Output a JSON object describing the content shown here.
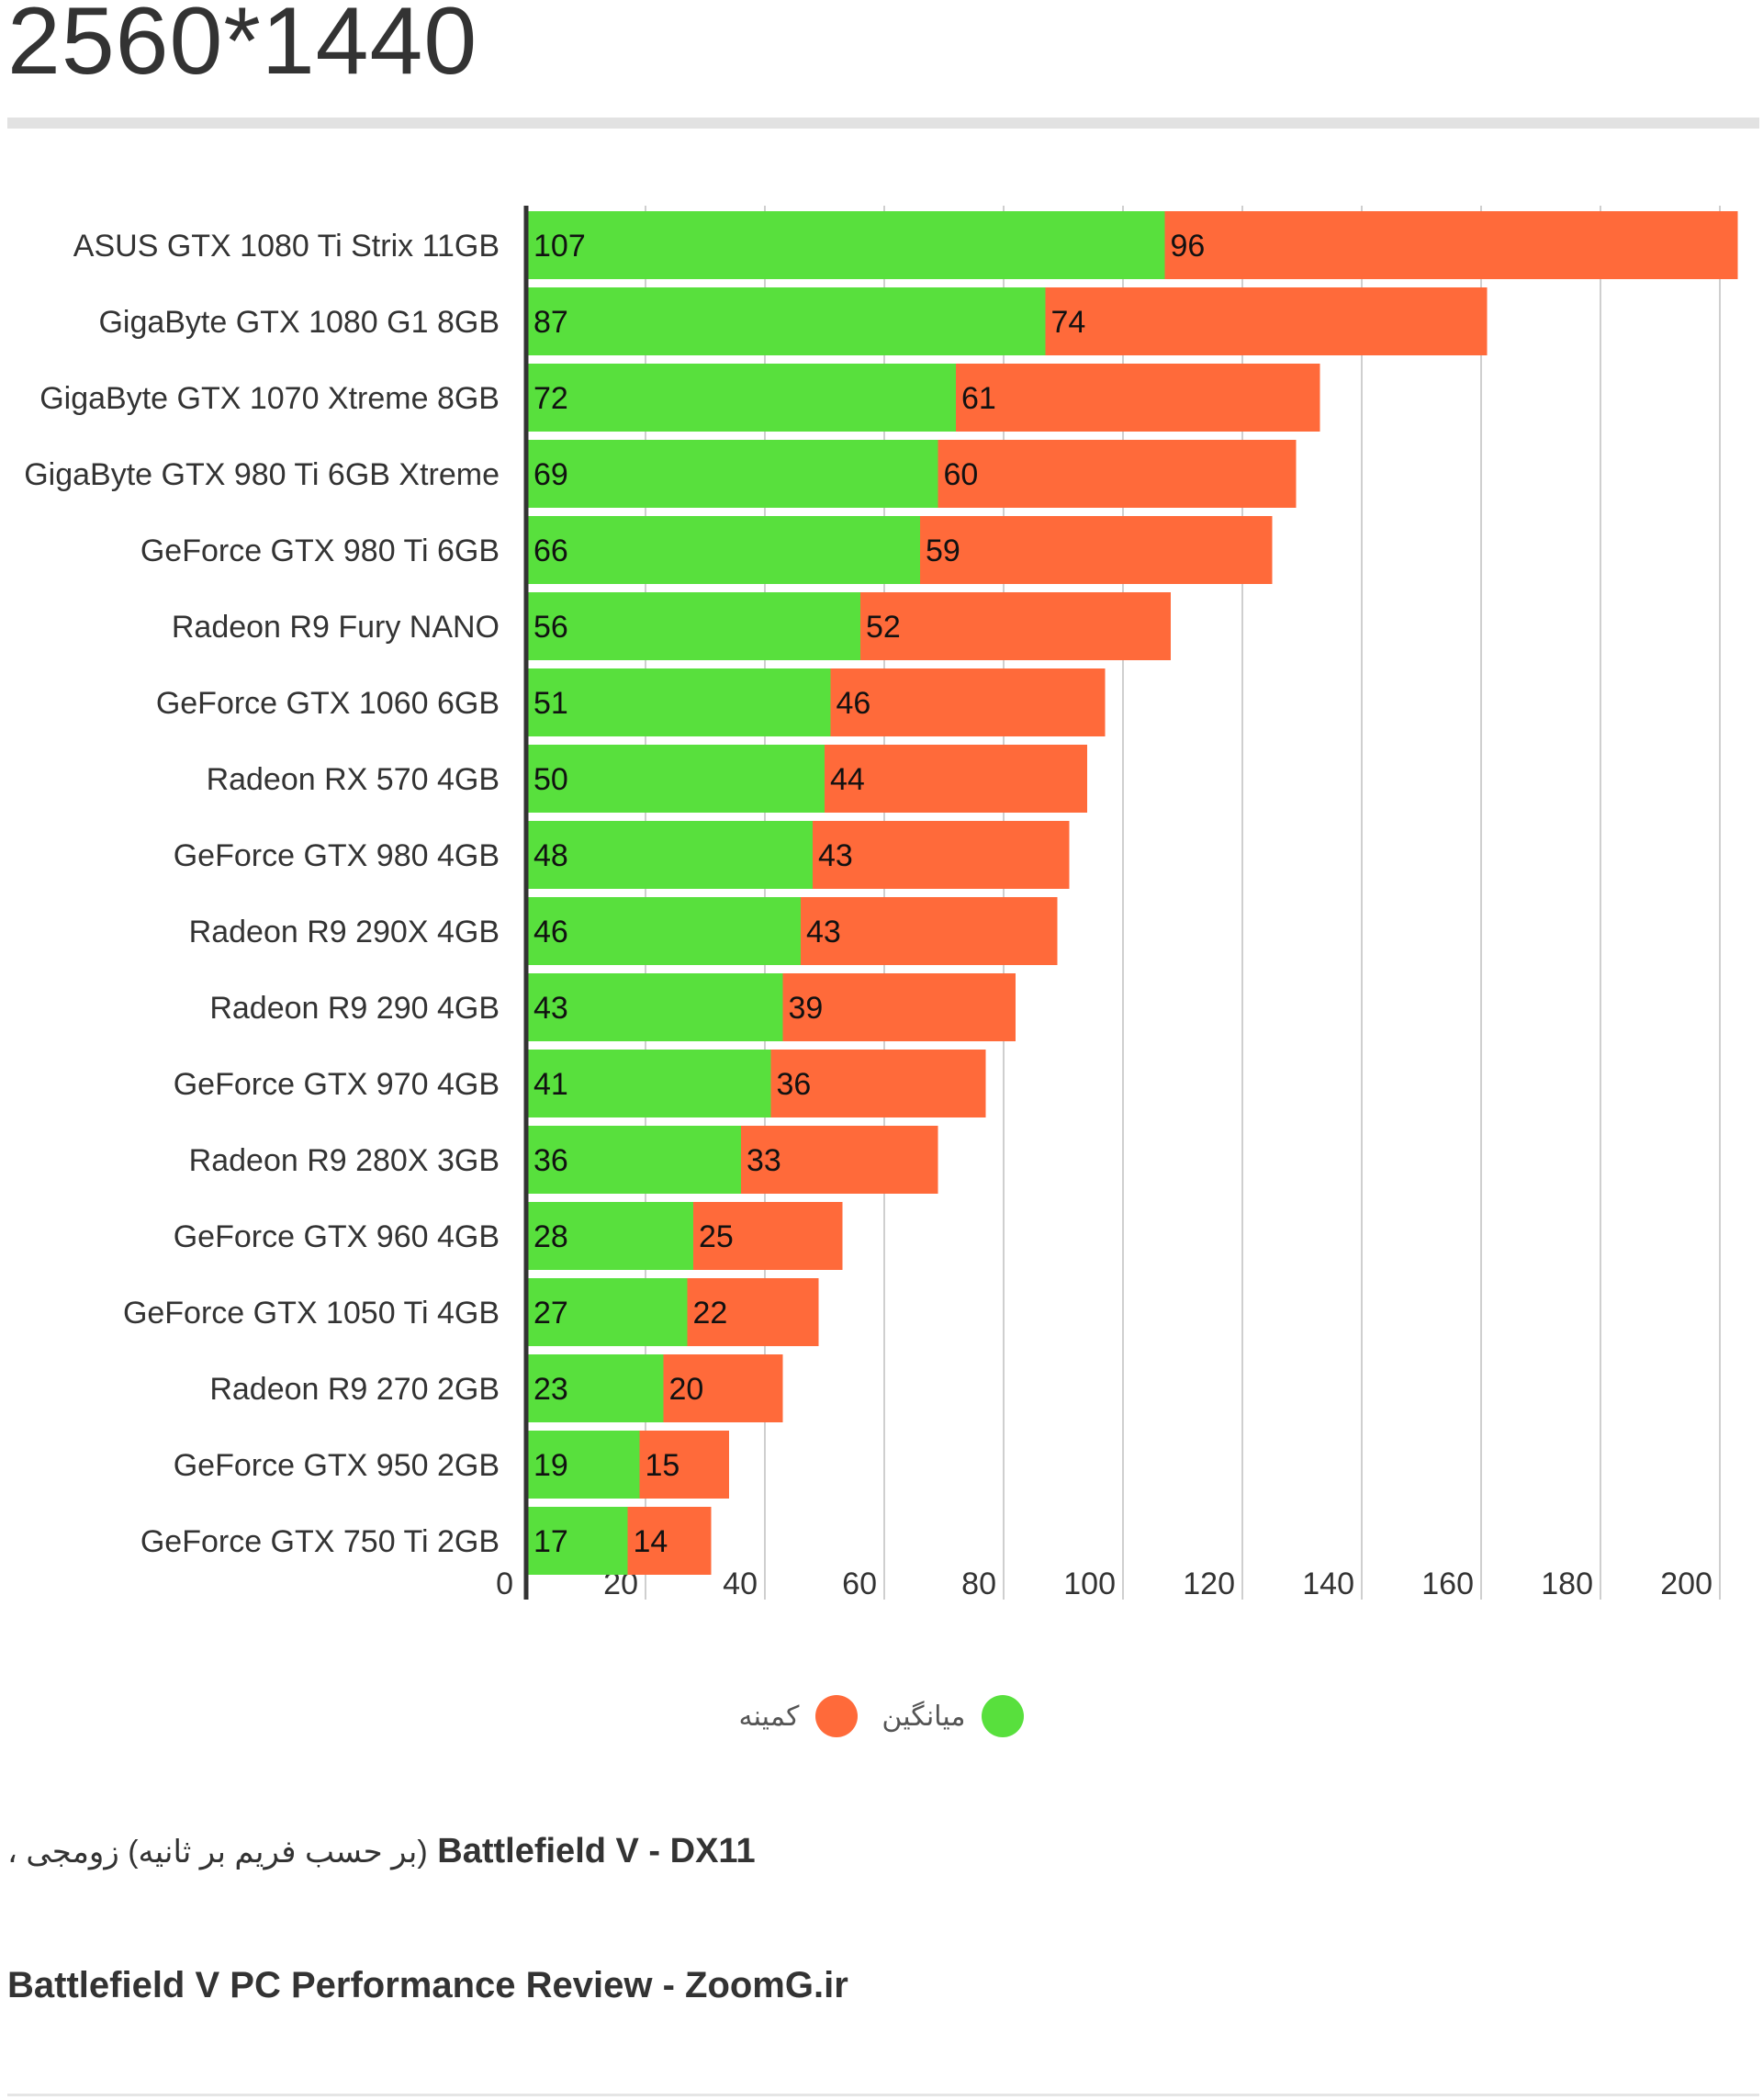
{
  "page": {
    "title": "2560*1440",
    "caption_fa": "(بر حسب فریم بر ثانیه) زومجی ،",
    "caption_en": "Battlefield V - DX11",
    "source": "Battlefield V PC Performance Review - ZoomG.ir"
  },
  "legend": {
    "min_label": "کمینه",
    "avg_label": "میانگین"
  },
  "colors": {
    "average": "#58e03d",
    "minimum": "#ff6a3a",
    "grid": "#cfcfcf",
    "axis": "#333333"
  },
  "chart_data": {
    "type": "bar",
    "orientation": "horizontal",
    "stacked": true,
    "categories": [
      "ASUS GTX 1080 Ti Strix 11GB",
      "GigaByte GTX 1080 G1 8GB",
      "GigaByte GTX 1070 Xtreme 8GB",
      "GigaByte GTX 980 Ti 6GB Xtreme",
      "GeForce GTX 980 Ti 6GB",
      "Radeon R9 Fury NANO",
      "GeForce GTX 1060 6GB",
      "Radeon RX 570 4GB",
      "GeForce GTX 980 4GB",
      "Radeon R9 290X 4GB",
      "Radeon R9 290 4GB",
      "GeForce GTX 970 4GB",
      "Radeon R9 280X 3GB",
      "GeForce GTX 960 4GB",
      "GeForce GTX 1050 Ti 4GB",
      "Radeon R9 270 2GB",
      "GeForce GTX 950 2GB",
      "GeForce GTX 750 Ti 2GB"
    ],
    "series": [
      {
        "name": "میانگین",
        "color": "#58e03d",
        "values": [
          107,
          87,
          72,
          69,
          66,
          56,
          51,
          50,
          48,
          46,
          43,
          41,
          36,
          28,
          27,
          23,
          19,
          17
        ]
      },
      {
        "name": "کمینه",
        "color": "#ff6a3a",
        "values": [
          96,
          74,
          61,
          60,
          59,
          52,
          46,
          44,
          43,
          43,
          39,
          36,
          33,
          25,
          22,
          20,
          15,
          14
        ]
      }
    ],
    "xlim": [
      0,
      200
    ],
    "xticks": [
      0,
      20,
      40,
      60,
      80,
      100,
      120,
      140,
      160,
      180,
      200
    ],
    "grid": true,
    "legend_position": "bottom-center"
  }
}
